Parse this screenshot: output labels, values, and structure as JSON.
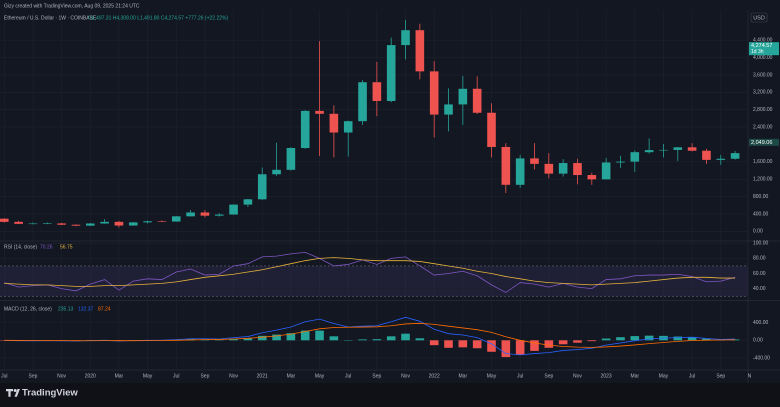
{
  "header": "Gizy created with TradingView.com, Aug 09, 2025 21:24 UTC",
  "footer": "TradingView",
  "currency": "USD",
  "chart_data": [
    {
      "type": "candlestick",
      "title": "Ethereum / U.S. Dollar · 1W · COINBASE",
      "subtitle": "O1,497.31 H4,308.00 L1,491.80 C4,274.57 +777.26 (+22.22%)",
      "x": [
        0,
        1,
        2,
        3,
        4,
        5,
        6,
        7,
        8,
        9,
        10,
        11,
        12,
        13,
        14,
        15,
        16,
        17,
        18,
        19,
        20,
        21,
        22,
        23,
        24,
        25,
        26,
        27,
        28,
        29,
        30,
        31,
        32,
        33,
        34,
        35,
        36,
        37,
        38,
        39,
        40,
        41,
        42,
        43,
        44,
        45,
        46,
        47,
        48,
        49,
        50,
        51
      ],
      "open": [
        290,
        218,
        172,
        180,
        182,
        152,
        130,
        180,
        218,
        133,
        206,
        231,
        225,
        345,
        434,
        360,
        386,
        615,
        737,
        1314,
        1416,
        1918,
        2773,
        2706,
        2275,
        2536,
        3433,
        3001,
        4288,
        4631,
        3683,
        2688,
        2922,
        3282,
        2730,
        1942,
        1071,
        1679,
        1553,
        1328,
        1572,
        1296,
        1196,
        1585,
        1605,
        1822,
        1870,
        1874,
        1934,
        1856,
        1645,
        1671
      ],
      "high": [
        300,
        240,
        200,
        200,
        195,
        160,
        190,
        280,
        240,
        215,
        245,
        250,
        350,
        490,
        490,
        420,
        620,
        750,
        1470,
        2040,
        1940,
        2790,
        4380,
        2900,
        2550,
        3480,
        3900,
        4460,
        4870,
        4780,
        3920,
        3290,
        3580,
        3570,
        2950,
        2030,
        1760,
        2030,
        1800,
        1660,
        1670,
        1350,
        1690,
        1740,
        1860,
        2140,
        2010,
        1940,
        2030,
        1900,
        1760,
        1850
      ],
      "low": [
        200,
        165,
        160,
        165,
        145,
        120,
        125,
        175,
        88,
        130,
        180,
        210,
        220,
        340,
        320,
        340,
        385,
        560,
        720,
        1280,
        1400,
        1900,
        1730,
        1700,
        1720,
        2450,
        2650,
        2970,
        3960,
        3500,
        2160,
        2300,
        2450,
        2700,
        1700,
        880,
        1000,
        1420,
        1220,
        1260,
        1080,
        1070,
        1190,
        1460,
        1370,
        1790,
        1700,
        1620,
        1840,
        1550,
        1530,
        1650
      ],
      "close": [
        218,
        172,
        180,
        182,
        152,
        130,
        180,
        218,
        133,
        206,
        231,
        225,
        345,
        434,
        360,
        386,
        615,
        737,
        1314,
        1416,
        1918,
        2773,
        2706,
        2275,
        2536,
        3433,
        3001,
        4288,
        4631,
        3683,
        2688,
        2922,
        3282,
        2730,
        1942,
        1071,
        1679,
        1553,
        1328,
        1572,
        1296,
        1196,
        1585,
        1605,
        1822,
        1870,
        1874,
        1934,
        1856,
        1645,
        1671,
        1800
      ],
      "up_color": "#26a69a",
      "down_color": "#ef5350",
      "xlim": [
        -0.3,
        51.9
      ],
      "xticks": [
        {
          "value": 0,
          "label": "Jul"
        },
        {
          "value": 2,
          "label": "Sep"
        },
        {
          "value": 4,
          "label": "Nov"
        },
        {
          "value": 6,
          "label": "2020"
        },
        {
          "value": 8,
          "label": "Mar"
        },
        {
          "value": 10,
          "label": "May"
        },
        {
          "value": 12,
          "label": "Jul"
        },
        {
          "value": 14,
          "label": "Sep"
        },
        {
          "value": 16,
          "label": "Nov"
        },
        {
          "value": 18,
          "label": "2021"
        },
        {
          "value": 20,
          "label": "Mar"
        },
        {
          "value": 22,
          "label": "May"
        },
        {
          "value": 24,
          "label": "Jul"
        },
        {
          "value": 26,
          "label": "Sep"
        },
        {
          "value": 28,
          "label": "Nov"
        },
        {
          "value": 30,
          "label": "2022"
        },
        {
          "value": 32,
          "label": "Mar"
        },
        {
          "value": 34,
          "label": "May"
        },
        {
          "value": 36,
          "label": "Jul"
        },
        {
          "value": 38,
          "label": "Sep"
        },
        {
          "value": 40,
          "label": "Nov"
        },
        {
          "value": 42,
          "label": "2023"
        },
        {
          "value": 44,
          "label": "Mar"
        },
        {
          "value": 46,
          "label": "May"
        },
        {
          "value": 48,
          "label": "Jul"
        },
        {
          "value": 50,
          "label": "Sep"
        },
        {
          "value": 52,
          "label": "N"
        }
      ],
      "ylim": [
        -200,
        5050
      ],
      "yticks": [
        {
          "value": 0,
          "label": "0.00"
        },
        {
          "value": 400,
          "label": "400.00"
        },
        {
          "value": 800,
          "label": "800.00"
        },
        {
          "value": 1200,
          "label": "1,200.00"
        },
        {
          "value": 1600,
          "label": "1,600.00"
        },
        {
          "value": 2400,
          "label": "2,400.00"
        },
        {
          "value": 2800,
          "label": "2,800.00"
        },
        {
          "value": 3200,
          "label": "3,200.00"
        },
        {
          "value": 3600,
          "label": "3,600.00"
        },
        {
          "value": 4000,
          "label": "4,000.00"
        },
        {
          "value": 4400,
          "label": "4,400.00"
        }
      ],
      "badges": [
        {
          "value": 4274.57,
          "label": "4,274.57",
          "sub": "1d 3h",
          "color": "#26a69a"
        },
        {
          "value": 2049.06,
          "label": "2,049.06",
          "color": "#1d4a45"
        }
      ],
      "grid": true
    },
    {
      "type": "line",
      "title": "RSI (14, close)",
      "value_labels": [
        "70.26",
        "56.75"
      ],
      "x": [
        0,
        1,
        2,
        3,
        4,
        5,
        6,
        7,
        8,
        9,
        10,
        11,
        12,
        13,
        14,
        15,
        16,
        17,
        18,
        19,
        20,
        21,
        22,
        23,
        24,
        25,
        26,
        27,
        28,
        29,
        30,
        31,
        32,
        33,
        34,
        35,
        36,
        37,
        38,
        39,
        40,
        41,
        42,
        43,
        44,
        45,
        46,
        47,
        48,
        49,
        50,
        51
      ],
      "series": [
        {
          "name": "RSI",
          "color": "#7e57c2",
          "values": [
            48,
            42,
            44,
            45,
            40,
            37,
            46,
            52,
            38,
            50,
            53,
            52,
            62,
            66,
            58,
            59,
            70,
            73,
            82,
            83,
            86,
            88,
            80,
            70,
            72,
            78,
            72,
            80,
            82,
            70,
            58,
            60,
            63,
            57,
            45,
            35,
            48,
            46,
            42,
            47,
            42,
            40,
            52,
            53,
            57,
            58,
            58,
            59,
            56,
            49,
            50,
            55
          ]
        },
        {
          "name": "RSI-based MA",
          "color": "#e6b33c",
          "values": [
            47,
            46,
            45,
            45,
            44,
            43,
            43,
            44,
            44,
            45,
            46,
            47,
            49,
            52,
            55,
            57,
            59,
            62,
            65,
            69,
            73,
            77,
            80,
            81,
            80,
            78,
            77,
            77,
            77,
            76,
            73,
            70,
            67,
            63,
            60,
            56,
            53,
            50,
            48,
            47,
            46,
            45,
            46,
            47,
            48,
            50,
            52,
            54,
            55,
            55,
            54,
            54
          ]
        }
      ],
      "band": [
        30,
        70
      ],
      "band_color": "rgba(126,87,194,0.12)",
      "ylim": [
        25,
        103
      ],
      "yticks": [
        {
          "value": 40,
          "label": "40.00"
        },
        {
          "value": 60,
          "label": "60.00"
        },
        {
          "value": 80,
          "label": "80.00"
        },
        {
          "value": 100,
          "label": "100.00"
        }
      ]
    },
    {
      "type": "macd",
      "title": "MACD (12, 26, close)",
      "value_labels": [
        "235.13",
        "132.37",
        "87.24"
      ],
      "x": [
        0,
        1,
        2,
        3,
        4,
        5,
        6,
        7,
        8,
        9,
        10,
        11,
        12,
        13,
        14,
        15,
        16,
        17,
        18,
        19,
        20,
        21,
        22,
        23,
        24,
        25,
        26,
        27,
        28,
        29,
        30,
        31,
        32,
        33,
        34,
        35,
        36,
        37,
        38,
        39,
        40,
        41,
        42,
        43,
        44,
        45,
        46,
        47,
        48,
        49,
        50,
        51
      ],
      "histogram": [
        -5,
        -7,
        -7,
        -3,
        -4,
        -5,
        2,
        8,
        -6,
        1,
        7,
        7,
        15,
        27,
        20,
        10,
        30,
        40,
        100,
        130,
        160,
        220,
        220,
        90,
        5,
        20,
        25,
        90,
        150,
        45,
        -110,
        -170,
        -160,
        -180,
        -260,
        -380,
        -330,
        -240,
        -170,
        -90,
        -55,
        -20,
        40,
        70,
        95,
        105,
        100,
        85,
        75,
        38,
        14,
        19
      ],
      "hist_colors": [
        "#26a69a",
        "#ef5350"
      ],
      "series": [
        {
          "name": "MACD",
          "color": "#2962ff",
          "values": [
            -5,
            -10,
            -12,
            -10,
            -12,
            -15,
            -8,
            0,
            -15,
            -8,
            0,
            2,
            15,
            35,
            35,
            30,
            60,
            85,
            170,
            230,
            300,
            420,
            480,
            380,
            300,
            320,
            330,
            420,
            520,
            430,
            250,
            150,
            120,
            60,
            -80,
            -300,
            -330,
            -300,
            -280,
            -230,
            -210,
            -180,
            -110,
            -60,
            -10,
            30,
            50,
            60,
            70,
            40,
            20,
            30
          ]
        },
        {
          "name": "Signal",
          "color": "#ff6d00",
          "values": [
            0,
            -3,
            -5,
            -7,
            -8,
            -10,
            -10,
            -8,
            -9,
            -9,
            -7,
            -5,
            0,
            8,
            15,
            20,
            30,
            45,
            70,
            100,
            140,
            200,
            260,
            290,
            295,
            300,
            305,
            330,
            370,
            385,
            360,
            320,
            280,
            240,
            180,
            80,
            0,
            -60,
            -110,
            -140,
            -155,
            -160,
            -150,
            -130,
            -105,
            -75,
            -50,
            -25,
            -5,
            2,
            6,
            11
          ]
        }
      ],
      "ylim": [
        -650,
        890
      ],
      "yticks": [
        {
          "value": -400,
          "label": "-400.00"
        },
        {
          "value": 0,
          "label": "0.00"
        },
        {
          "value": 400,
          "label": "400.00"
        }
      ]
    }
  ]
}
